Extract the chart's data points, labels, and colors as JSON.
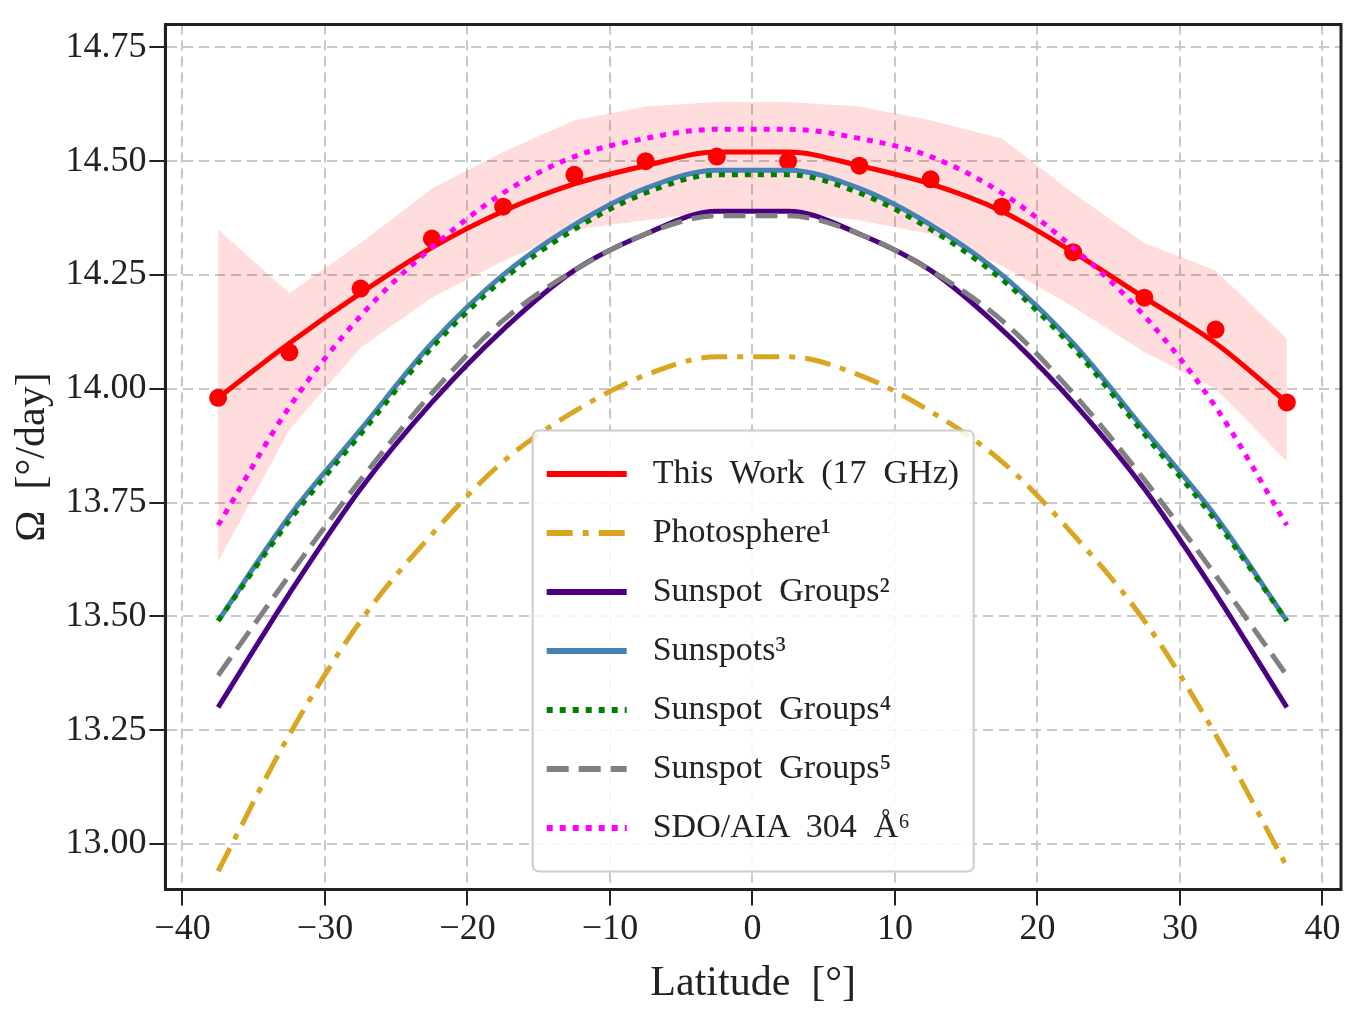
{
  "chart_data": {
    "type": "line",
    "xlabel": "Latitude  [°]",
    "ylabel": "Ω  [°/day]",
    "x": [
      -37.5,
      -32.5,
      -27.5,
      -22.5,
      -17.5,
      -12.5,
      -7.5,
      -2.5,
      2.5,
      7.5,
      12.5,
      17.5,
      22.5,
      27.5,
      32.5,
      37.5
    ],
    "xlim": [
      -41.2,
      41.3
    ],
    "xticks": [
      -40,
      -30,
      -20,
      -10,
      0,
      10,
      20,
      30,
      40
    ],
    "ylim": [
      12.9,
      14.8
    ],
    "yticks": [
      {
        "value": 13,
        "label": "13.00"
      },
      13.25,
      {
        "value": 13.5,
        "label": "13.50"
      },
      13.75,
      {
        "value": 14,
        "label": "14.00"
      },
      14.25,
      {
        "value": 14.5,
        "label": "14.50"
      },
      14.75
    ],
    "grid": true,
    "legend": "bottom",
    "marker": "none",
    "series": [
      {
        "type": "scatter",
        "marker": "circle",
        "color": "#ff0000",
        "values": [
          13.98,
          14.08,
          14.22,
          14.33,
          14.4,
          14.47,
          14.5,
          14.51,
          14.5,
          14.49,
          14.46,
          14.4,
          14.3,
          14.2,
          14.13,
          13.97
        ]
      },
      {
        "name": "This  Work  (17  GHz)",
        "color": "#ff0000",
        "line_style": "solid",
        "values": [
          13.98,
          14.1,
          14.21,
          14.31,
          14.39,
          14.45,
          14.49,
          14.52,
          14.52,
          14.49,
          14.45,
          14.39,
          14.3,
          14.2,
          14.1,
          13.97
        ],
        "lower": [
          13.62,
          13.91,
          14.09,
          14.2,
          14.28,
          14.35,
          14.37,
          14.39,
          14.39,
          14.37,
          14.34,
          14.27,
          14.18,
          14.08,
          14.0,
          13.84
        ],
        "upper": [
          14.35,
          14.21,
          14.32,
          14.44,
          14.52,
          14.59,
          14.62,
          14.63,
          14.63,
          14.62,
          14.59,
          14.55,
          14.43,
          14.32,
          14.26,
          14.11
        ]
      },
      {
        "name": "Photosphere¹",
        "color": "#daa520",
        "line_style": "dashdot",
        "values": [
          12.94,
          13.24,
          13.49,
          13.68,
          13.84,
          13.95,
          14.03,
          14.07,
          14.07,
          14.03,
          13.95,
          13.84,
          13.68,
          13.49,
          13.24,
          12.95
        ]
      },
      {
        "name": "Sunspot  Groups²",
        "color": "#4b0082",
        "line_style": "solid",
        "values": [
          13.3,
          13.55,
          13.78,
          13.97,
          14.13,
          14.26,
          14.34,
          14.39,
          14.39,
          14.34,
          14.26,
          14.13,
          13.97,
          13.78,
          13.55,
          13.3
        ]
      },
      {
        "name": "Sunspots³",
        "color": "#4682b4",
        "line_style": "solid",
        "values": [
          13.49,
          13.72,
          13.91,
          14.1,
          14.25,
          14.36,
          14.44,
          14.48,
          14.48,
          14.44,
          14.36,
          14.25,
          14.1,
          13.91,
          13.72,
          13.49
        ]
      },
      {
        "name": "Sunspot  Groups⁴",
        "color": "#008000",
        "line_style": "dotted",
        "values": [
          13.49,
          13.71,
          13.9,
          14.09,
          14.24,
          14.35,
          14.43,
          14.47,
          14.47,
          14.43,
          14.35,
          14.24,
          14.09,
          13.9,
          13.71,
          13.49
        ]
      },
      {
        "name": "Sunspot  Groups⁵",
        "color": "#808080",
        "line_style": "dashed",
        "values": [
          13.37,
          13.59,
          13.8,
          13.99,
          14.15,
          14.26,
          14.34,
          14.38,
          14.38,
          14.34,
          14.26,
          14.15,
          13.99,
          13.8,
          13.59,
          13.37
        ]
      },
      {
        "name": "SDO/AIA  304  Å⁶",
        "color": "#ff00ff",
        "line_style": "dotted",
        "values": [
          13.7,
          13.96,
          14.16,
          14.31,
          14.43,
          14.51,
          14.55,
          14.57,
          14.57,
          14.55,
          14.51,
          14.43,
          14.31,
          14.16,
          13.96,
          13.7
        ]
      }
    ]
  }
}
